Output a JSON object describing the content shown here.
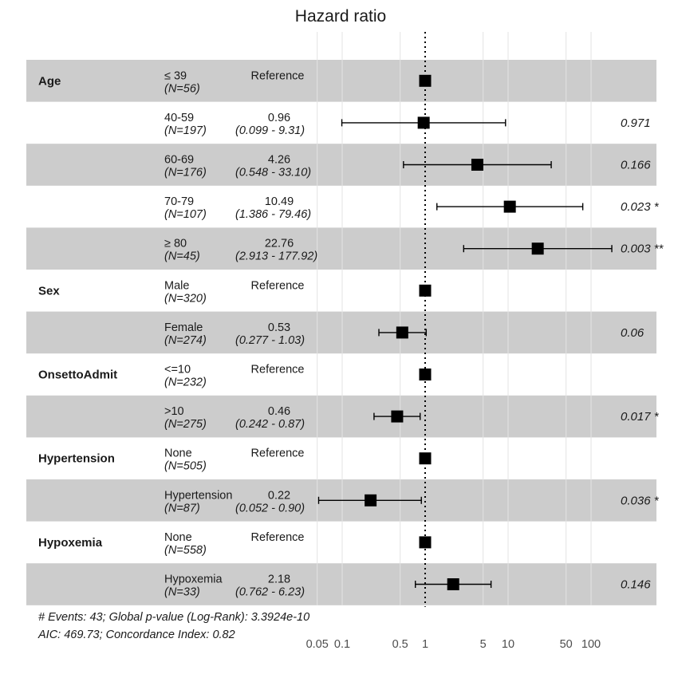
{
  "chart_data": {
    "type": "forest",
    "title": "Hazard ratio",
    "x_scale": "log",
    "x_ticks": [
      0.05,
      0.1,
      0.5,
      1,
      5,
      10,
      50,
      100
    ],
    "x_tick_labels": [
      "0.05",
      "0.1",
      "0.5",
      "1",
      "5",
      "10",
      "50",
      "100"
    ],
    "reference_line": 1,
    "rows": [
      {
        "variable": "Age",
        "level": "≤ 39",
        "n": "(N=56)",
        "estimate": "Reference",
        "ci": "",
        "p": "",
        "hr": 1,
        "lo": null,
        "hi": null,
        "shaded": true
      },
      {
        "variable": "",
        "level": "40-59",
        "n": "(N=197)",
        "estimate": "0.96",
        "ci": "(0.099 -   9.31)",
        "p": "0.971",
        "hr": 0.96,
        "lo": 0.099,
        "hi": 9.31,
        "shaded": false
      },
      {
        "variable": "",
        "level": "60-69",
        "n": "(N=176)",
        "estimate": "4.26",
        "ci": "(0.548 -  33.10)",
        "p": "0.166",
        "hr": 4.26,
        "lo": 0.548,
        "hi": 33.1,
        "shaded": true
      },
      {
        "variable": "",
        "level": "70-79",
        "n": "(N=107)",
        "estimate": "10.49",
        "ci": "(1.386 -  79.46)",
        "p": "0.023 *",
        "hr": 10.49,
        "lo": 1.386,
        "hi": 79.46,
        "shaded": false
      },
      {
        "variable": "",
        "level": "≥ 80",
        "n": "(N=45)",
        "estimate": "22.76",
        "ci": "(2.913 - 177.92)",
        "p": "0.003 **",
        "hr": 22.76,
        "lo": 2.913,
        "hi": 177.92,
        "shaded": true
      },
      {
        "variable": "Sex",
        "level": "Male",
        "n": "(N=320)",
        "estimate": "Reference",
        "ci": "",
        "p": "",
        "hr": 1,
        "lo": null,
        "hi": null,
        "shaded": false
      },
      {
        "variable": "",
        "level": "Female",
        "n": "(N=274)",
        "estimate": "0.53",
        "ci": "(0.277 -   1.03)",
        "p": "0.06",
        "hr": 0.53,
        "lo": 0.277,
        "hi": 1.03,
        "shaded": true
      },
      {
        "variable": "OnsettoAdmit",
        "level": "<=10",
        "n": "(N=232)",
        "estimate": "Reference",
        "ci": "",
        "p": "",
        "hr": 1,
        "lo": null,
        "hi": null,
        "shaded": false
      },
      {
        "variable": "",
        "level": ">10",
        "n": "(N=275)",
        "estimate": "0.46",
        "ci": "(0.242 -   0.87)",
        "p": "0.017 *",
        "hr": 0.46,
        "lo": 0.242,
        "hi": 0.87,
        "shaded": true
      },
      {
        "variable": "Hypertension",
        "level": "None",
        "n": "(N=505)",
        "estimate": "Reference",
        "ci": "",
        "p": "",
        "hr": 1,
        "lo": null,
        "hi": null,
        "shaded": false
      },
      {
        "variable": "",
        "level": "Hypertension",
        "n": "(N=87)",
        "estimate": "0.22",
        "ci": "(0.052 -   0.90)",
        "p": "0.036 *",
        "hr": 0.22,
        "lo": 0.052,
        "hi": 0.9,
        "shaded": true
      },
      {
        "variable": "Hypoxemia",
        "level": "None",
        "n": "(N=558)",
        "estimate": "Reference",
        "ci": "",
        "p": "",
        "hr": 1,
        "lo": null,
        "hi": null,
        "shaded": false
      },
      {
        "variable": "",
        "level": "Hypoxemia",
        "n": "(N=33)",
        "estimate": "2.18",
        "ci": "(0.762 -   6.23)",
        "p": "0.146",
        "hr": 2.18,
        "lo": 0.762,
        "hi": 6.23,
        "shaded": true
      }
    ],
    "footnote": [
      "# Events: 43; Global p-value (Log-Rank): 3.3924e-10",
      "AIC: 469.73; Concordance Index: 0.82"
    ],
    "colors": {
      "shade": "#cccccc",
      "marker": "#000000",
      "grid": "#e3e3e3",
      "text": "#1a1a1a",
      "tick": "#4d4d4d"
    }
  }
}
